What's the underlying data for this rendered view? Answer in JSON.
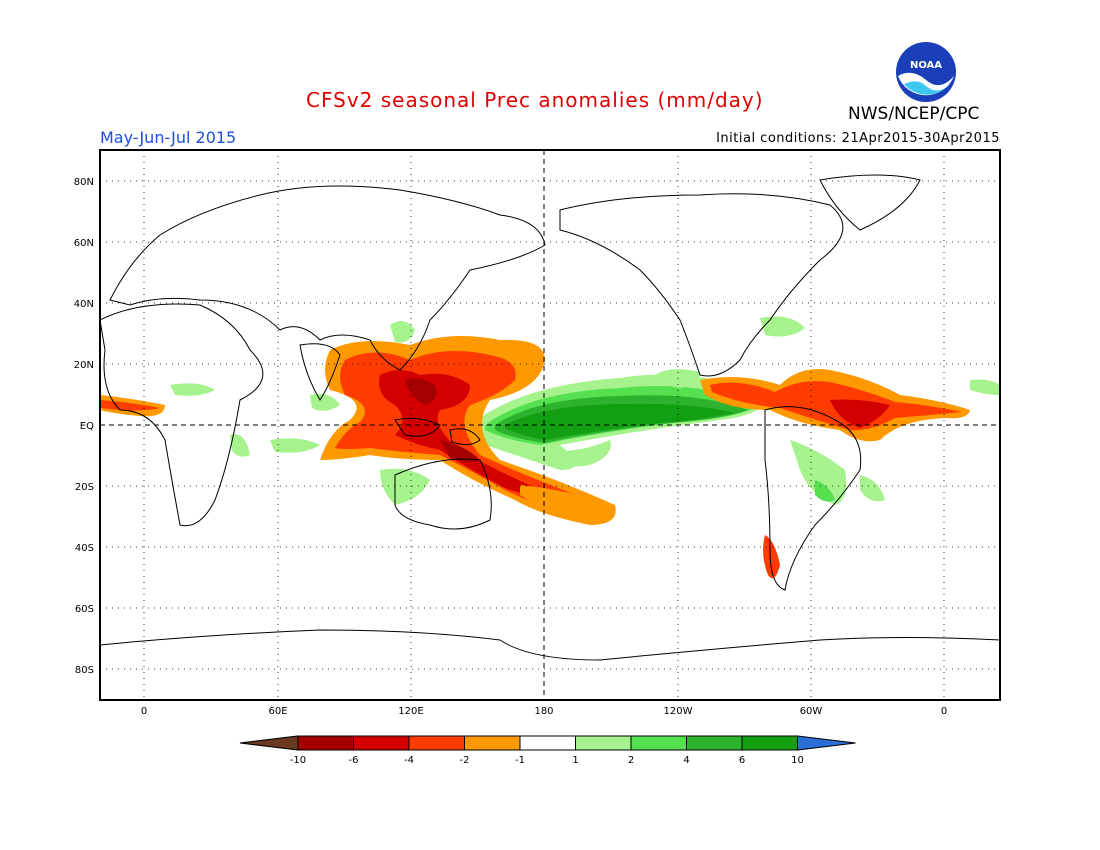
{
  "title": "CFSv2 seasonal Prec anomalies (mm/day)",
  "organization": "NWS/NCEP/CPC",
  "logo_text": "NOAA",
  "season": "May-Jun-Jul 2015",
  "initial_conditions": "Initial conditions: 21Apr2015-30Apr2015",
  "lat_labels": [
    "80N",
    "60N",
    "40N",
    "20N",
    "EQ",
    "20S",
    "40S",
    "60S",
    "80S"
  ],
  "lon_labels": [
    "0",
    "60E",
    "120E",
    "180",
    "120W",
    "60W",
    "0"
  ],
  "colorbar": {
    "tick_labels": [
      "-10",
      "-6",
      "-4",
      "-2",
      "-1",
      "1",
      "2",
      "4",
      "6",
      "10"
    ],
    "colors": [
      "#6b3a1e",
      "#a50000",
      "#d40000",
      "#ff3c00",
      "#ff9900",
      "#ffffff",
      "#a6f28c",
      "#55e050",
      "#2db22d",
      "#129f12",
      "#2c6dd8"
    ]
  },
  "anomaly_colors": {
    "strong_wet": "#129f12",
    "wet": "#2db22d",
    "moderate_wet": "#55e050",
    "light_wet": "#a6f28c",
    "light_dry": "#ff9900",
    "dry": "#ff3c00",
    "strong_dry": "#d40000",
    "very_dry": "#a50000"
  }
}
